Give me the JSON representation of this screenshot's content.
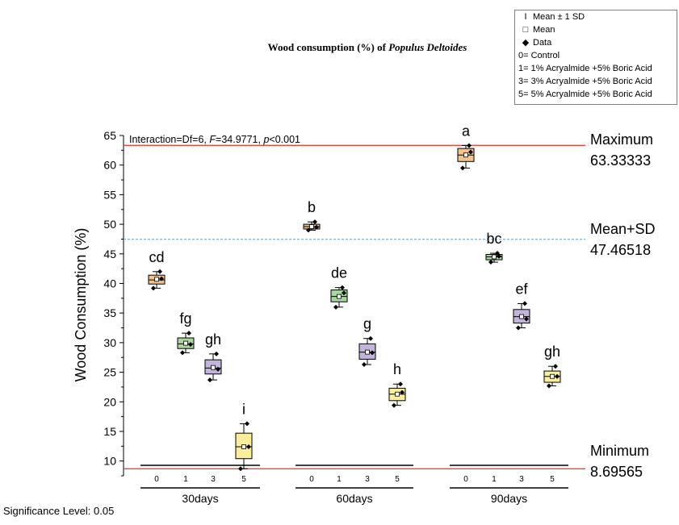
{
  "chart_data": {
    "type": "box",
    "title_prefix": "Wood consumption (%) of ",
    "title_italic": "Populus Deltoides",
    "ylabel": "Wood Consumption (%)",
    "ylim": [
      7.5,
      65
    ],
    "yticks": [
      10,
      15,
      20,
      25,
      30,
      35,
      40,
      45,
      50,
      55,
      60,
      65
    ],
    "annotation_parts": {
      "prefix": "Interaction=Df=6, ",
      "F_sym": "F",
      "F_val": "=34.9771, ",
      "p_sym": "p",
      "p_val": "<0.001"
    },
    "groups": [
      {
        "label": "30days",
        "boxes": [
          {
            "label": "0",
            "color": "#f5c28e",
            "q1": 39.9,
            "q3": 41.4,
            "median": 40.6,
            "mean": 40.7,
            "whisker_low": 39.2,
            "whisker_high": 42.0,
            "letter": "cd",
            "points": [
              39.2,
              42.0,
              40.8
            ]
          },
          {
            "label": "1",
            "color": "#a8d79d",
            "q1": 29.0,
            "q3": 30.8,
            "median": 29.8,
            "mean": 29.9,
            "whisker_low": 28.3,
            "whisker_high": 31.6,
            "letter": "fg",
            "points": [
              28.3,
              31.6,
              29.7
            ]
          },
          {
            "label": "3",
            "color": "#c2b4dc",
            "q1": 24.7,
            "q3": 27.1,
            "median": 25.7,
            "mean": 25.8,
            "whisker_low": 23.7,
            "whisker_high": 28.1,
            "letter": "gh",
            "points": [
              23.7,
              28.1,
              25.5
            ]
          },
          {
            "label": "5",
            "color": "#faee9a",
            "q1": 10.4,
            "q3": 14.7,
            "median": 12.4,
            "mean": 12.4,
            "whisker_low": 8.7,
            "whisker_high": 16.3,
            "letter": "i",
            "points": [
              8.7,
              16.3,
              12.4
            ]
          }
        ]
      },
      {
        "label": "60days",
        "boxes": [
          {
            "label": "0",
            "color": "#f5c28e",
            "q1": 49.2,
            "q3": 50.0,
            "median": 49.6,
            "mean": 49.6,
            "whisker_low": 49.0,
            "whisker_high": 50.4,
            "letter": "b",
            "points": [
              49.0,
              50.4,
              49.5
            ]
          },
          {
            "label": "1",
            "color": "#a8d79d",
            "q1": 36.9,
            "q3": 38.9,
            "median": 37.8,
            "mean": 37.8,
            "whisker_low": 36.0,
            "whisker_high": 39.3,
            "letter": "de",
            "points": [
              36.0,
              39.3,
              38.4
            ]
          },
          {
            "label": "3",
            "color": "#c2b4dc",
            "q1": 27.2,
            "q3": 29.8,
            "median": 28.4,
            "mean": 28.4,
            "whisker_low": 26.3,
            "whisker_high": 30.7,
            "letter": "g",
            "points": [
              26.3,
              30.7,
              28.3
            ]
          },
          {
            "label": "5",
            "color": "#faee9a",
            "q1": 20.2,
            "q3": 22.3,
            "median": 21.3,
            "mean": 21.3,
            "whisker_low": 19.4,
            "whisker_high": 23.0,
            "letter": "h",
            "points": [
              19.4,
              23.0,
              21.6
            ]
          }
        ]
      },
      {
        "label": "90days",
        "boxes": [
          {
            "label": "0",
            "color": "#f5c28e",
            "q1": 60.6,
            "q3": 62.8,
            "median": 61.7,
            "mean": 61.7,
            "whisker_low": 59.5,
            "whisker_high": 63.3,
            "letter": "a",
            "points": [
              59.5,
              63.3,
              62.2
            ]
          },
          {
            "label": "1",
            "color": "#a8d79d",
            "q1": 44.0,
            "q3": 44.9,
            "median": 44.5,
            "mean": 44.5,
            "whisker_low": 43.6,
            "whisker_high": 45.1,
            "letter": "bc",
            "points": [
              43.6,
              45.1,
              44.6
            ]
          },
          {
            "label": "3",
            "color": "#c2b4dc",
            "q1": 33.3,
            "q3": 35.6,
            "median": 34.4,
            "mean": 34.4,
            "whisker_low": 32.5,
            "whisker_high": 36.6,
            "letter": "ef",
            "points": [
              32.5,
              36.6,
              34.0
            ]
          },
          {
            "label": "5",
            "color": "#faee9a",
            "q1": 23.3,
            "q3": 25.2,
            "median": 24.3,
            "mean": 24.3,
            "whisker_low": 22.7,
            "whisker_high": 26.0,
            "letter": "gh",
            "points": [
              22.7,
              26.0,
              24.3
            ]
          }
        ]
      }
    ],
    "reference_lines": [
      {
        "name": "Maximum",
        "value": 63.33333,
        "value_text": "63.33333",
        "color": "#e8302a",
        "style": "solid"
      },
      {
        "name": "Mean+SD",
        "value": 47.46518,
        "value_text": "47.46518",
        "color": "#5ba3d9",
        "style": "dashed"
      },
      {
        "name": "Minimum",
        "value": 8.69565,
        "value_text": "8.69565",
        "color": "#e8302a",
        "style": "solid"
      }
    ],
    "legend": {
      "entries": [
        {
          "symbol": "Ι",
          "text": "Mean ± 1 SD"
        },
        {
          "symbol": "□",
          "text": "Mean"
        },
        {
          "symbol": "◆",
          "text": "Data"
        },
        {
          "symbol": "",
          "text": "0= Control"
        },
        {
          "symbol": "",
          "text": "1= 1% Acryalmide +5% Boric Acid"
        },
        {
          "symbol": "",
          "text": "3= 3% Acryalmide +5% Boric Acid"
        },
        {
          "symbol": "",
          "text": "5= 5% Acryalmide +5% Boric Acid"
        }
      ]
    },
    "footnote": "Significance Level: 0.05",
    "grid": false
  }
}
